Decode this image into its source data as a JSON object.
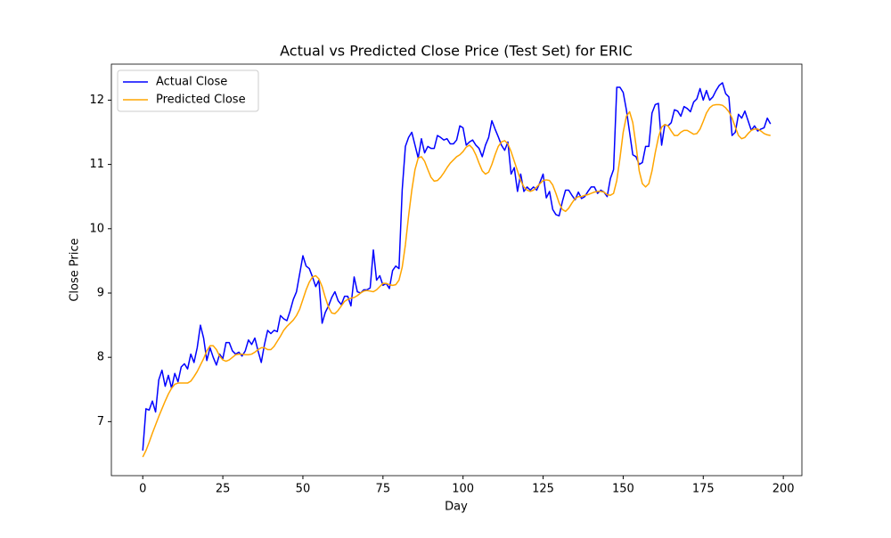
{
  "chart_data": {
    "type": "line",
    "title": "Actual vs Predicted Close Price (Test Set) for ERIC",
    "x_label": "Day",
    "y_label": "Close Price",
    "x": [
      0,
      1,
      2,
      3,
      4,
      5,
      6,
      7,
      8,
      9,
      10,
      11,
      12,
      13,
      14,
      15,
      16,
      17,
      18,
      19,
      20,
      21,
      22,
      23,
      24,
      25,
      26,
      27,
      28,
      29,
      30,
      31,
      32,
      33,
      34,
      35,
      36,
      37,
      38,
      39,
      40,
      41,
      42,
      43,
      44,
      45,
      46,
      47,
      48,
      49,
      50,
      51,
      52,
      53,
      54,
      55,
      56,
      57,
      58,
      59,
      60,
      61,
      62,
      63,
      64,
      65,
      66,
      67,
      68,
      69,
      70,
      71,
      72,
      73,
      74,
      75,
      76,
      77,
      78,
      79,
      80,
      81,
      82,
      83,
      84,
      85,
      86,
      87,
      88,
      89,
      90,
      91,
      92,
      93,
      94,
      95,
      96,
      97,
      98,
      99,
      100,
      101,
      102,
      103,
      104,
      105,
      106,
      107,
      108,
      109,
      110,
      111,
      112,
      113,
      114,
      115,
      116,
      117,
      118,
      119,
      120,
      121,
      122,
      123,
      124,
      125,
      126,
      127,
      128,
      129,
      130,
      131,
      132,
      133,
      134,
      135,
      136,
      137,
      138,
      139,
      140,
      141,
      142,
      143,
      144,
      145,
      146,
      147,
      148,
      149,
      150,
      151,
      152,
      153,
      154,
      155,
      156,
      157,
      158,
      159,
      160,
      161,
      162,
      163,
      164,
      165,
      166,
      167,
      168,
      169,
      170,
      171,
      172,
      173,
      174,
      175,
      176,
      177,
      178,
      179,
      180,
      181,
      182,
      183,
      184,
      185,
      186,
      187,
      188,
      189,
      190,
      191,
      192,
      193,
      194,
      195,
      196
    ],
    "series": [
      {
        "name": "Actual Close",
        "color": "#0000ff",
        "values": [
          6.55,
          7.2,
          7.18,
          7.32,
          7.15,
          7.65,
          7.8,
          7.55,
          7.72,
          7.52,
          7.75,
          7.62,
          7.85,
          7.9,
          7.82,
          8.05,
          7.92,
          8.15,
          8.5,
          8.3,
          7.95,
          8.15,
          8.0,
          7.88,
          8.05,
          7.98,
          8.23,
          8.23,
          8.1,
          8.05,
          8.08,
          8.02,
          8.1,
          8.27,
          8.2,
          8.3,
          8.1,
          7.92,
          8.2,
          8.42,
          8.37,
          8.42,
          8.4,
          8.65,
          8.6,
          8.57,
          8.72,
          8.9,
          9.02,
          9.3,
          9.58,
          9.42,
          9.38,
          9.25,
          9.1,
          9.2,
          8.53,
          8.7,
          8.8,
          8.93,
          9.02,
          8.88,
          8.82,
          8.95,
          8.95,
          8.8,
          9.25,
          9.02,
          9.0,
          9.05,
          9.05,
          9.08,
          9.67,
          9.2,
          9.27,
          9.12,
          9.15,
          9.07,
          9.35,
          9.42,
          9.38,
          10.6,
          11.28,
          11.42,
          11.5,
          11.3,
          11.1,
          11.4,
          11.18,
          11.28,
          11.25,
          11.25,
          11.45,
          11.42,
          11.38,
          11.4,
          11.32,
          11.32,
          11.38,
          11.6,
          11.57,
          11.3,
          11.35,
          11.38,
          11.3,
          11.25,
          11.12,
          11.3,
          11.42,
          11.68,
          11.55,
          11.43,
          11.3,
          11.22,
          11.35,
          10.85,
          10.95,
          10.58,
          10.85,
          10.58,
          10.65,
          10.6,
          10.65,
          10.6,
          10.72,
          10.85,
          10.48,
          10.58,
          10.3,
          10.22,
          10.2,
          10.42,
          10.6,
          10.6,
          10.52,
          10.45,
          10.57,
          10.47,
          10.5,
          10.58,
          10.65,
          10.65,
          10.55,
          10.6,
          10.57,
          10.5,
          10.78,
          10.92,
          12.2,
          12.2,
          12.12,
          11.85,
          11.5,
          11.15,
          11.12,
          11.0,
          11.03,
          11.28,
          11.28,
          11.8,
          11.93,
          11.95,
          11.3,
          11.62,
          11.6,
          11.65,
          11.85,
          11.83,
          11.75,
          11.9,
          11.87,
          11.82,
          11.97,
          12.02,
          12.18,
          12.0,
          12.15,
          12.0,
          12.05,
          12.15,
          12.23,
          12.27,
          12.1,
          12.05,
          11.45,
          11.5,
          11.78,
          11.72,
          11.83,
          11.68,
          11.53,
          11.6,
          11.52,
          11.55,
          11.57,
          11.72,
          11.63
        ]
      },
      {
        "name": "Predicted Close",
        "color": "#ffa500",
        "values": [
          6.45,
          6.55,
          6.68,
          6.82,
          6.95,
          7.08,
          7.2,
          7.32,
          7.43,
          7.52,
          7.58,
          7.6,
          7.6,
          7.6,
          7.6,
          7.63,
          7.7,
          7.78,
          7.88,
          7.98,
          8.1,
          8.18,
          8.18,
          8.12,
          8.02,
          7.96,
          7.94,
          7.96,
          8.0,
          8.04,
          8.05,
          8.05,
          8.04,
          8.04,
          8.05,
          8.08,
          8.12,
          8.15,
          8.15,
          8.12,
          8.12,
          8.17,
          8.25,
          8.33,
          8.42,
          8.48,
          8.53,
          8.58,
          8.65,
          8.75,
          8.9,
          9.05,
          9.17,
          9.25,
          9.27,
          9.22,
          9.1,
          8.93,
          8.78,
          8.69,
          8.68,
          8.73,
          8.8,
          8.87,
          8.9,
          8.92,
          8.93,
          8.96,
          9.0,
          9.03,
          9.04,
          9.03,
          9.02,
          9.05,
          9.1,
          9.15,
          9.15,
          9.13,
          9.12,
          9.13,
          9.2,
          9.4,
          9.75,
          10.2,
          10.6,
          10.92,
          11.1,
          11.12,
          11.05,
          10.92,
          10.8,
          10.74,
          10.75,
          10.8,
          10.87,
          10.95,
          11.02,
          11.07,
          11.12,
          11.15,
          11.2,
          11.27,
          11.3,
          11.25,
          11.15,
          11.02,
          10.9,
          10.85,
          10.88,
          11.0,
          11.15,
          11.28,
          11.35,
          11.37,
          11.32,
          11.2,
          11.05,
          10.9,
          10.75,
          10.65,
          10.6,
          10.58,
          10.6,
          10.65,
          10.7,
          10.75,
          10.76,
          10.75,
          10.68,
          10.55,
          10.4,
          10.3,
          10.27,
          10.32,
          10.4,
          10.47,
          10.5,
          10.5,
          10.52,
          10.53,
          10.55,
          10.57,
          10.58,
          10.58,
          10.57,
          10.53,
          10.52,
          10.55,
          10.75,
          11.1,
          11.5,
          11.75,
          11.82,
          11.65,
          11.3,
          10.9,
          10.7,
          10.65,
          10.7,
          10.9,
          11.18,
          11.42,
          11.58,
          11.62,
          11.6,
          11.52,
          11.45,
          11.45,
          11.5,
          11.53,
          11.53,
          11.5,
          11.47,
          11.48,
          11.55,
          11.67,
          11.8,
          11.88,
          11.92,
          11.93,
          11.93,
          11.92,
          11.88,
          11.82,
          11.72,
          11.58,
          11.45,
          11.4,
          11.42,
          11.48,
          11.53,
          11.55,
          11.55,
          11.52,
          11.48,
          11.46,
          11.45
        ]
      }
    ],
    "xlim": [
      -9.8,
      205.8
    ],
    "xticks": [
      0,
      25,
      50,
      75,
      100,
      125,
      150,
      175,
      200
    ],
    "ylim": [
      6.16,
      12.56
    ],
    "yticks": [
      7,
      8,
      9,
      10,
      11,
      12
    ],
    "legend": "upper left",
    "grid": false
  }
}
